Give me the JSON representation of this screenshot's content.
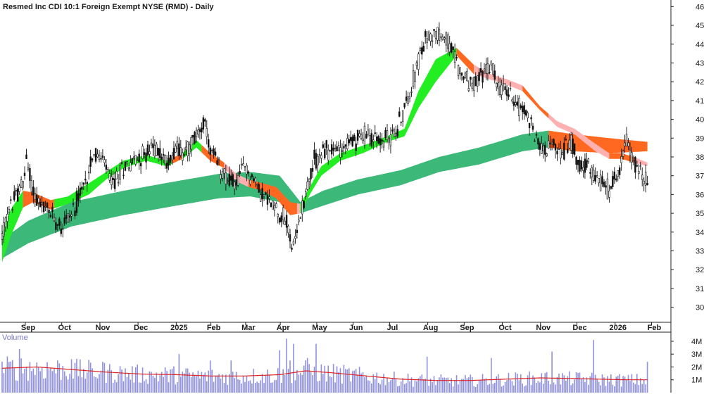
{
  "chart_data": {
    "type": "candlestick",
    "title": "Resmed Inc CDI 10:1 Foreign Exempt NYSE (RMD) - Daily",
    "price_axis": {
      "ticks": [
        30,
        31,
        32,
        33,
        34,
        35,
        36,
        37,
        38,
        39,
        40,
        41,
        42,
        43,
        44,
        45,
        46
      ],
      "range": [
        29.2,
        46.2
      ],
      "side": "right"
    },
    "x_axis": {
      "labels": [
        "Sep",
        "Oct",
        "Nov",
        "Dec",
        "2025",
        "Feb",
        "Mar",
        "Apr",
        "May",
        "Jun",
        "Jul",
        "Aug",
        "Sep",
        "Oct",
        "Nov",
        "Dec",
        "2026",
        "Feb"
      ],
      "label_day_index": [
        15,
        36,
        58,
        80,
        102,
        122,
        142,
        162,
        183,
        204,
        225,
        247,
        268,
        290,
        312,
        333,
        355,
        376
      ]
    },
    "bands": {
      "slow": {
        "upper": [
          [
            0,
            33.6
          ],
          [
            15,
            34.6
          ],
          [
            40,
            35.6
          ],
          [
            70,
            36.2
          ],
          [
            100,
            36.7
          ],
          [
            125,
            37.1
          ],
          [
            143,
            37.2
          ],
          [
            160,
            37.0
          ],
          [
            172,
            35.6
          ],
          [
            185,
            36.2
          ],
          [
            205,
            36.8
          ],
          [
            230,
            37.3
          ],
          [
            252,
            38.0
          ],
          [
            275,
            38.5
          ],
          [
            300,
            39.2
          ],
          [
            315,
            39.4
          ],
          [
            330,
            39.2
          ],
          [
            350,
            39.0
          ],
          [
            372,
            38.8
          ]
        ],
        "lower": [
          [
            0,
            32.6
          ],
          [
            15,
            33.4
          ],
          [
            40,
            34.3
          ],
          [
            70,
            34.9
          ],
          [
            100,
            35.4
          ],
          [
            125,
            35.8
          ],
          [
            143,
            35.9
          ],
          [
            160,
            35.6
          ],
          [
            172,
            35.0
          ],
          [
            185,
            35.4
          ],
          [
            205,
            36.0
          ],
          [
            230,
            36.5
          ],
          [
            252,
            37.2
          ],
          [
            275,
            37.6
          ],
          [
            300,
            38.3
          ],
          [
            315,
            38.5
          ],
          [
            330,
            38.3
          ],
          [
            350,
            38.2
          ],
          [
            372,
            38.3
          ]
        ],
        "segments": [
          {
            "from": 0,
            "to": 172,
            "color": "#3cb878"
          },
          {
            "from": 172,
            "to": 315,
            "color": "#3cb878"
          },
          {
            "from": 315,
            "to": 372,
            "color": "#ff6820"
          }
        ]
      },
      "fast": {
        "upper": [
          [
            0,
            34.0
          ],
          [
            5,
            35.2
          ],
          [
            12,
            36.2
          ],
          [
            18,
            36.1
          ],
          [
            28,
            35.7
          ],
          [
            38,
            35.9
          ],
          [
            50,
            36.6
          ],
          [
            60,
            37.2
          ],
          [
            70,
            37.8
          ],
          [
            83,
            38.1
          ],
          [
            95,
            37.8
          ],
          [
            104,
            38.2
          ],
          [
            112,
            38.9
          ],
          [
            120,
            38.2
          ],
          [
            128,
            37.7
          ],
          [
            135,
            37.1
          ],
          [
            142,
            36.8
          ],
          [
            150,
            36.6
          ],
          [
            158,
            36.4
          ],
          [
            166,
            35.6
          ],
          [
            172,
            35.5
          ],
          [
            178,
            36.5
          ],
          [
            184,
            37.5
          ],
          [
            195,
            38.2
          ],
          [
            208,
            38.6
          ],
          [
            222,
            39.1
          ],
          [
            232,
            39.5
          ],
          [
            240,
            41.5
          ],
          [
            250,
            43.2
          ],
          [
            262,
            43.8
          ],
          [
            272,
            42.9
          ],
          [
            282,
            42.4
          ],
          [
            292,
            42.1
          ],
          [
            300,
            41.8
          ],
          [
            310,
            40.7
          ],
          [
            320,
            39.9
          ],
          [
            330,
            39.5
          ],
          [
            342,
            38.7
          ],
          [
            350,
            38.2
          ],
          [
            357,
            38.2
          ],
          [
            364,
            38.0
          ],
          [
            372,
            37.7
          ]
        ],
        "lower": [
          [
            0,
            32.4
          ],
          [
            5,
            33.8
          ],
          [
            12,
            35.3
          ],
          [
            18,
            35.6
          ],
          [
            28,
            35.2
          ],
          [
            38,
            35.5
          ],
          [
            50,
            36.0
          ],
          [
            60,
            36.8
          ],
          [
            70,
            37.4
          ],
          [
            83,
            37.8
          ],
          [
            95,
            37.5
          ],
          [
            104,
            37.9
          ],
          [
            112,
            38.5
          ],
          [
            120,
            37.8
          ],
          [
            128,
            37.4
          ],
          [
            135,
            36.7
          ],
          [
            142,
            36.4
          ],
          [
            150,
            36.2
          ],
          [
            158,
            35.8
          ],
          [
            166,
            34.9
          ],
          [
            172,
            35.0
          ],
          [
            178,
            36.1
          ],
          [
            184,
            37.0
          ],
          [
            195,
            37.8
          ],
          [
            208,
            38.2
          ],
          [
            222,
            38.8
          ],
          [
            232,
            39.1
          ],
          [
            240,
            40.6
          ],
          [
            250,
            42.0
          ],
          [
            262,
            43.4
          ],
          [
            272,
            42.4
          ],
          [
            282,
            42.1
          ],
          [
            292,
            41.8
          ],
          [
            300,
            41.5
          ],
          [
            310,
            40.5
          ],
          [
            320,
            39.6
          ],
          [
            330,
            39.2
          ],
          [
            342,
            38.3
          ],
          [
            350,
            37.9
          ],
          [
            357,
            37.9
          ],
          [
            364,
            37.7
          ],
          [
            372,
            37.5
          ]
        ],
        "segments": [
          {
            "from": 0,
            "to": 12,
            "color": "#22ee22"
          },
          {
            "from": 12,
            "to": 30,
            "color": "#ff6820"
          },
          {
            "from": 30,
            "to": 98,
            "color": "#22ee22"
          },
          {
            "from": 98,
            "to": 104,
            "color": "#ff6820"
          },
          {
            "from": 104,
            "to": 115,
            "color": "#22ee22"
          },
          {
            "from": 115,
            "to": 128,
            "color": "#ff6820"
          },
          {
            "from": 128,
            "to": 142,
            "color": "#ffb0b0"
          },
          {
            "from": 142,
            "to": 170,
            "color": "#ff6820"
          },
          {
            "from": 170,
            "to": 172,
            "color": "#ffb0b0"
          },
          {
            "from": 172,
            "to": 234,
            "color": "#22ee22"
          },
          {
            "from": 234,
            "to": 262,
            "color": "#22ee22"
          },
          {
            "from": 262,
            "to": 272,
            "color": "#ff6820"
          },
          {
            "from": 272,
            "to": 300,
            "color": "#ffb0b0"
          },
          {
            "from": 300,
            "to": 315,
            "color": "#ff6820"
          },
          {
            "from": 315,
            "to": 350,
            "color": "#ffb0b0"
          },
          {
            "from": 350,
            "to": 364,
            "color": "#ff6820"
          },
          {
            "from": 364,
            "to": 372,
            "color": "#ffb0b0"
          }
        ]
      }
    },
    "price_path": [
      [
        0,
        33.8
      ],
      [
        5,
        35.4
      ],
      [
        12,
        36.6
      ],
      [
        14,
        37.8
      ],
      [
        18,
        36.2
      ],
      [
        22,
        35.4
      ],
      [
        28,
        35.0
      ],
      [
        34,
        34.4
      ],
      [
        40,
        35.0
      ],
      [
        48,
        36.6
      ],
      [
        52,
        38.2
      ],
      [
        58,
        37.8
      ],
      [
        64,
        36.5
      ],
      [
        70,
        37.5
      ],
      [
        80,
        38.0
      ],
      [
        88,
        38.5
      ],
      [
        96,
        37.6
      ],
      [
        100,
        38.7
      ],
      [
        104,
        38.1
      ],
      [
        110,
        38.8
      ],
      [
        116,
        39.9
      ],
      [
        120,
        38.3
      ],
      [
        126,
        37.3
      ],
      [
        134,
        36.5
      ],
      [
        140,
        37.5
      ],
      [
        146,
        36.6
      ],
      [
        152,
        35.8
      ],
      [
        158,
        35.3
      ],
      [
        164,
        34.5
      ],
      [
        168,
        33.0
      ],
      [
        172,
        35.0
      ],
      [
        176,
        36.5
      ],
      [
        180,
        37.8
      ],
      [
        186,
        38.3
      ],
      [
        194,
        38.4
      ],
      [
        202,
        38.8
      ],
      [
        210,
        39.2
      ],
      [
        218,
        38.8
      ],
      [
        226,
        39.2
      ],
      [
        232,
        40.5
      ],
      [
        238,
        42.5
      ],
      [
        244,
        44.2
      ],
      [
        250,
        44.6
      ],
      [
        256,
        44.3
      ],
      [
        262,
        43.0
      ],
      [
        266,
        42.2
      ],
      [
        272,
        41.8
      ],
      [
        278,
        42.5
      ],
      [
        282,
        42.8
      ],
      [
        286,
        41.8
      ],
      [
        292,
        41.4
      ],
      [
        298,
        40.8
      ],
      [
        304,
        40.0
      ],
      [
        310,
        38.5
      ],
      [
        316,
        38.6
      ],
      [
        322,
        38.2
      ],
      [
        328,
        38.8
      ],
      [
        334,
        37.6
      ],
      [
        340,
        37.2
      ],
      [
        346,
        36.5
      ],
      [
        350,
        36.2
      ],
      [
        356,
        37.5
      ],
      [
        360,
        38.8
      ],
      [
        364,
        37.8
      ],
      [
        368,
        37.2
      ],
      [
        372,
        36.6
      ]
    ],
    "volume": {
      "label": "Volume",
      "ticks": [
        {
          "value": 1,
          "label": "1M"
        },
        {
          "value": 2,
          "label": "2M"
        },
        {
          "value": 3,
          "label": "3M"
        },
        {
          "value": 4,
          "label": "4M"
        }
      ],
      "range": [
        0,
        4.6
      ],
      "bar_color": "#9090e0",
      "average_color": "#dd2222",
      "average": [
        [
          0,
          1.9
        ],
        [
          20,
          2.0
        ],
        [
          40,
          1.8
        ],
        [
          60,
          1.6
        ],
        [
          80,
          1.45
        ],
        [
          100,
          1.4
        ],
        [
          120,
          1.3
        ],
        [
          140,
          1.3
        ],
        [
          160,
          1.4
        ],
        [
          175,
          1.7
        ],
        [
          190,
          1.55
        ],
        [
          210,
          1.3
        ],
        [
          230,
          1.05
        ],
        [
          250,
          0.95
        ],
        [
          270,
          0.95
        ],
        [
          290,
          1.05
        ],
        [
          310,
          1.15
        ],
        [
          330,
          1.1
        ],
        [
          345,
          1.05
        ],
        [
          360,
          1.0
        ],
        [
          372,
          1.0
        ]
      ],
      "spikes": [
        [
          10,
          3.4
        ],
        [
          40,
          2.6
        ],
        [
          58,
          2.4
        ],
        [
          102,
          3.0
        ],
        [
          120,
          2.5
        ],
        [
          132,
          2.5
        ],
        [
          160,
          3.3
        ],
        [
          164,
          4.2
        ],
        [
          166,
          2.5
        ],
        [
          168,
          3.8
        ],
        [
          176,
          2.7
        ],
        [
          181,
          3.8
        ],
        [
          245,
          2.8
        ],
        [
          282,
          2.7
        ],
        [
          317,
          3.2
        ],
        [
          341,
          4.1
        ],
        [
          372,
          2.4
        ]
      ]
    }
  }
}
